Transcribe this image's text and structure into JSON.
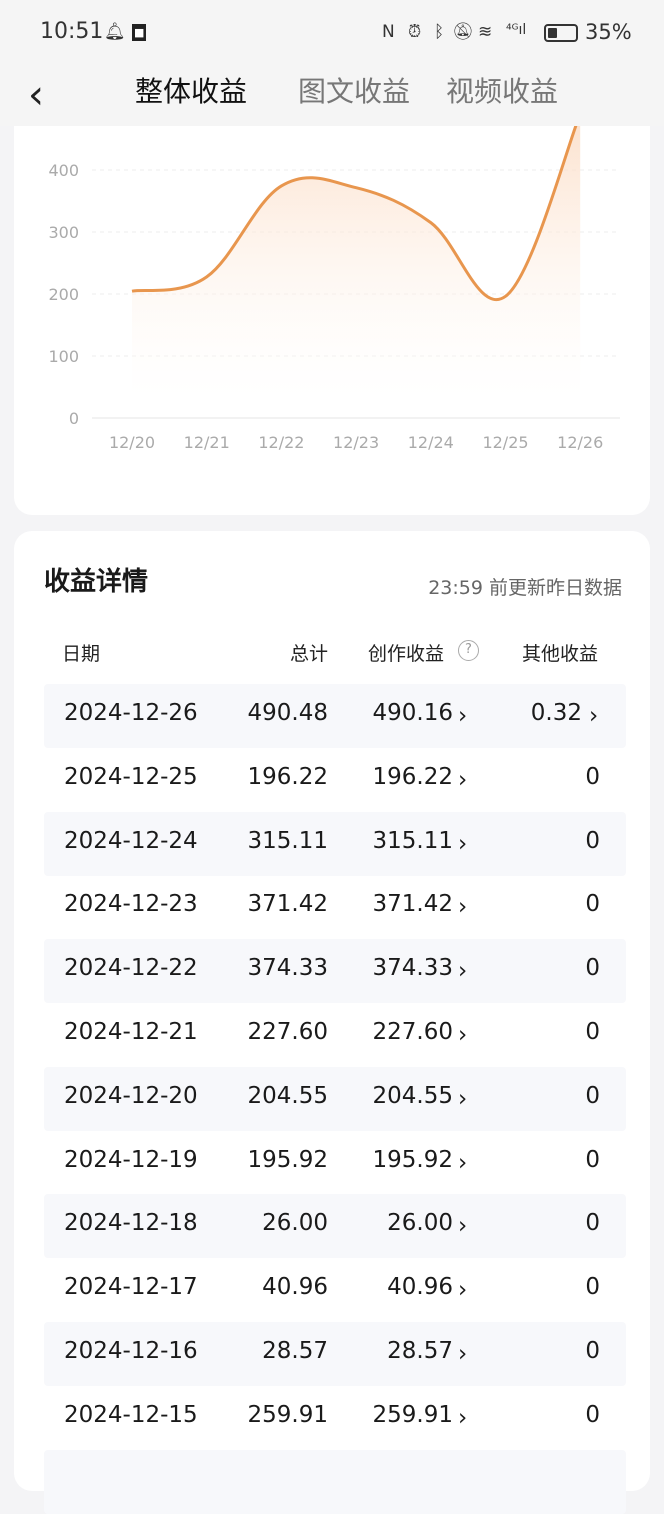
{
  "status": {
    "time": "10:51",
    "battery": "35%",
    "battery_level": 0.35,
    "icons": [
      "qq-icon",
      "app-icon",
      "nfc-icon",
      "alarm-icon",
      "bluetooth-icon",
      "mute-icon",
      "wifi-icon",
      "signal-4g-icon",
      "battery-icon"
    ]
  },
  "nav": {
    "tabs": [
      {
        "label": "整体收益",
        "active": true
      },
      {
        "label": "图文收益",
        "active": false
      },
      {
        "label": "视频收益",
        "active": false
      }
    ]
  },
  "chart_data": {
    "type": "area",
    "categories": [
      "12/20",
      "12/21",
      "12/22",
      "12/23",
      "12/24",
      "12/25",
      "12/26"
    ],
    "values": [
      204.55,
      227.6,
      374.33,
      371.42,
      315.11,
      196.22,
      490.48
    ],
    "yticks": [
      "0",
      "100",
      "200",
      "300",
      "400"
    ],
    "ylim": [
      0,
      400
    ],
    "grid": true,
    "color": "#e8964e"
  },
  "details": {
    "title": "收益详情",
    "note": "23:59 前更新昨日数据",
    "headers": {
      "date": "日期",
      "total": "总计",
      "creation": "创作收益",
      "other": "其他收益"
    },
    "rows": [
      {
        "date": "2024-12-26",
        "total": "490.48",
        "creation": "490.16",
        "other": "0.32"
      },
      {
        "date": "2024-12-25",
        "total": "196.22",
        "creation": "196.22",
        "other": "0"
      },
      {
        "date": "2024-12-24",
        "total": "315.11",
        "creation": "315.11",
        "other": "0"
      },
      {
        "date": "2024-12-23",
        "total": "371.42",
        "creation": "371.42",
        "other": "0"
      },
      {
        "date": "2024-12-22",
        "total": "374.33",
        "creation": "374.33",
        "other": "0"
      },
      {
        "date": "2024-12-21",
        "total": "227.60",
        "creation": "227.60",
        "other": "0"
      },
      {
        "date": "2024-12-20",
        "total": "204.55",
        "creation": "204.55",
        "other": "0"
      },
      {
        "date": "2024-12-19",
        "total": "195.92",
        "creation": "195.92",
        "other": "0"
      },
      {
        "date": "2024-12-18",
        "total": "26.00",
        "creation": "26.00",
        "other": "0"
      },
      {
        "date": "2024-12-17",
        "total": "40.96",
        "creation": "40.96",
        "other": "0"
      },
      {
        "date": "2024-12-16",
        "total": "28.57",
        "creation": "28.57",
        "other": "0"
      },
      {
        "date": "2024-12-15",
        "total": "259.91",
        "creation": "259.91",
        "other": "0"
      }
    ]
  }
}
